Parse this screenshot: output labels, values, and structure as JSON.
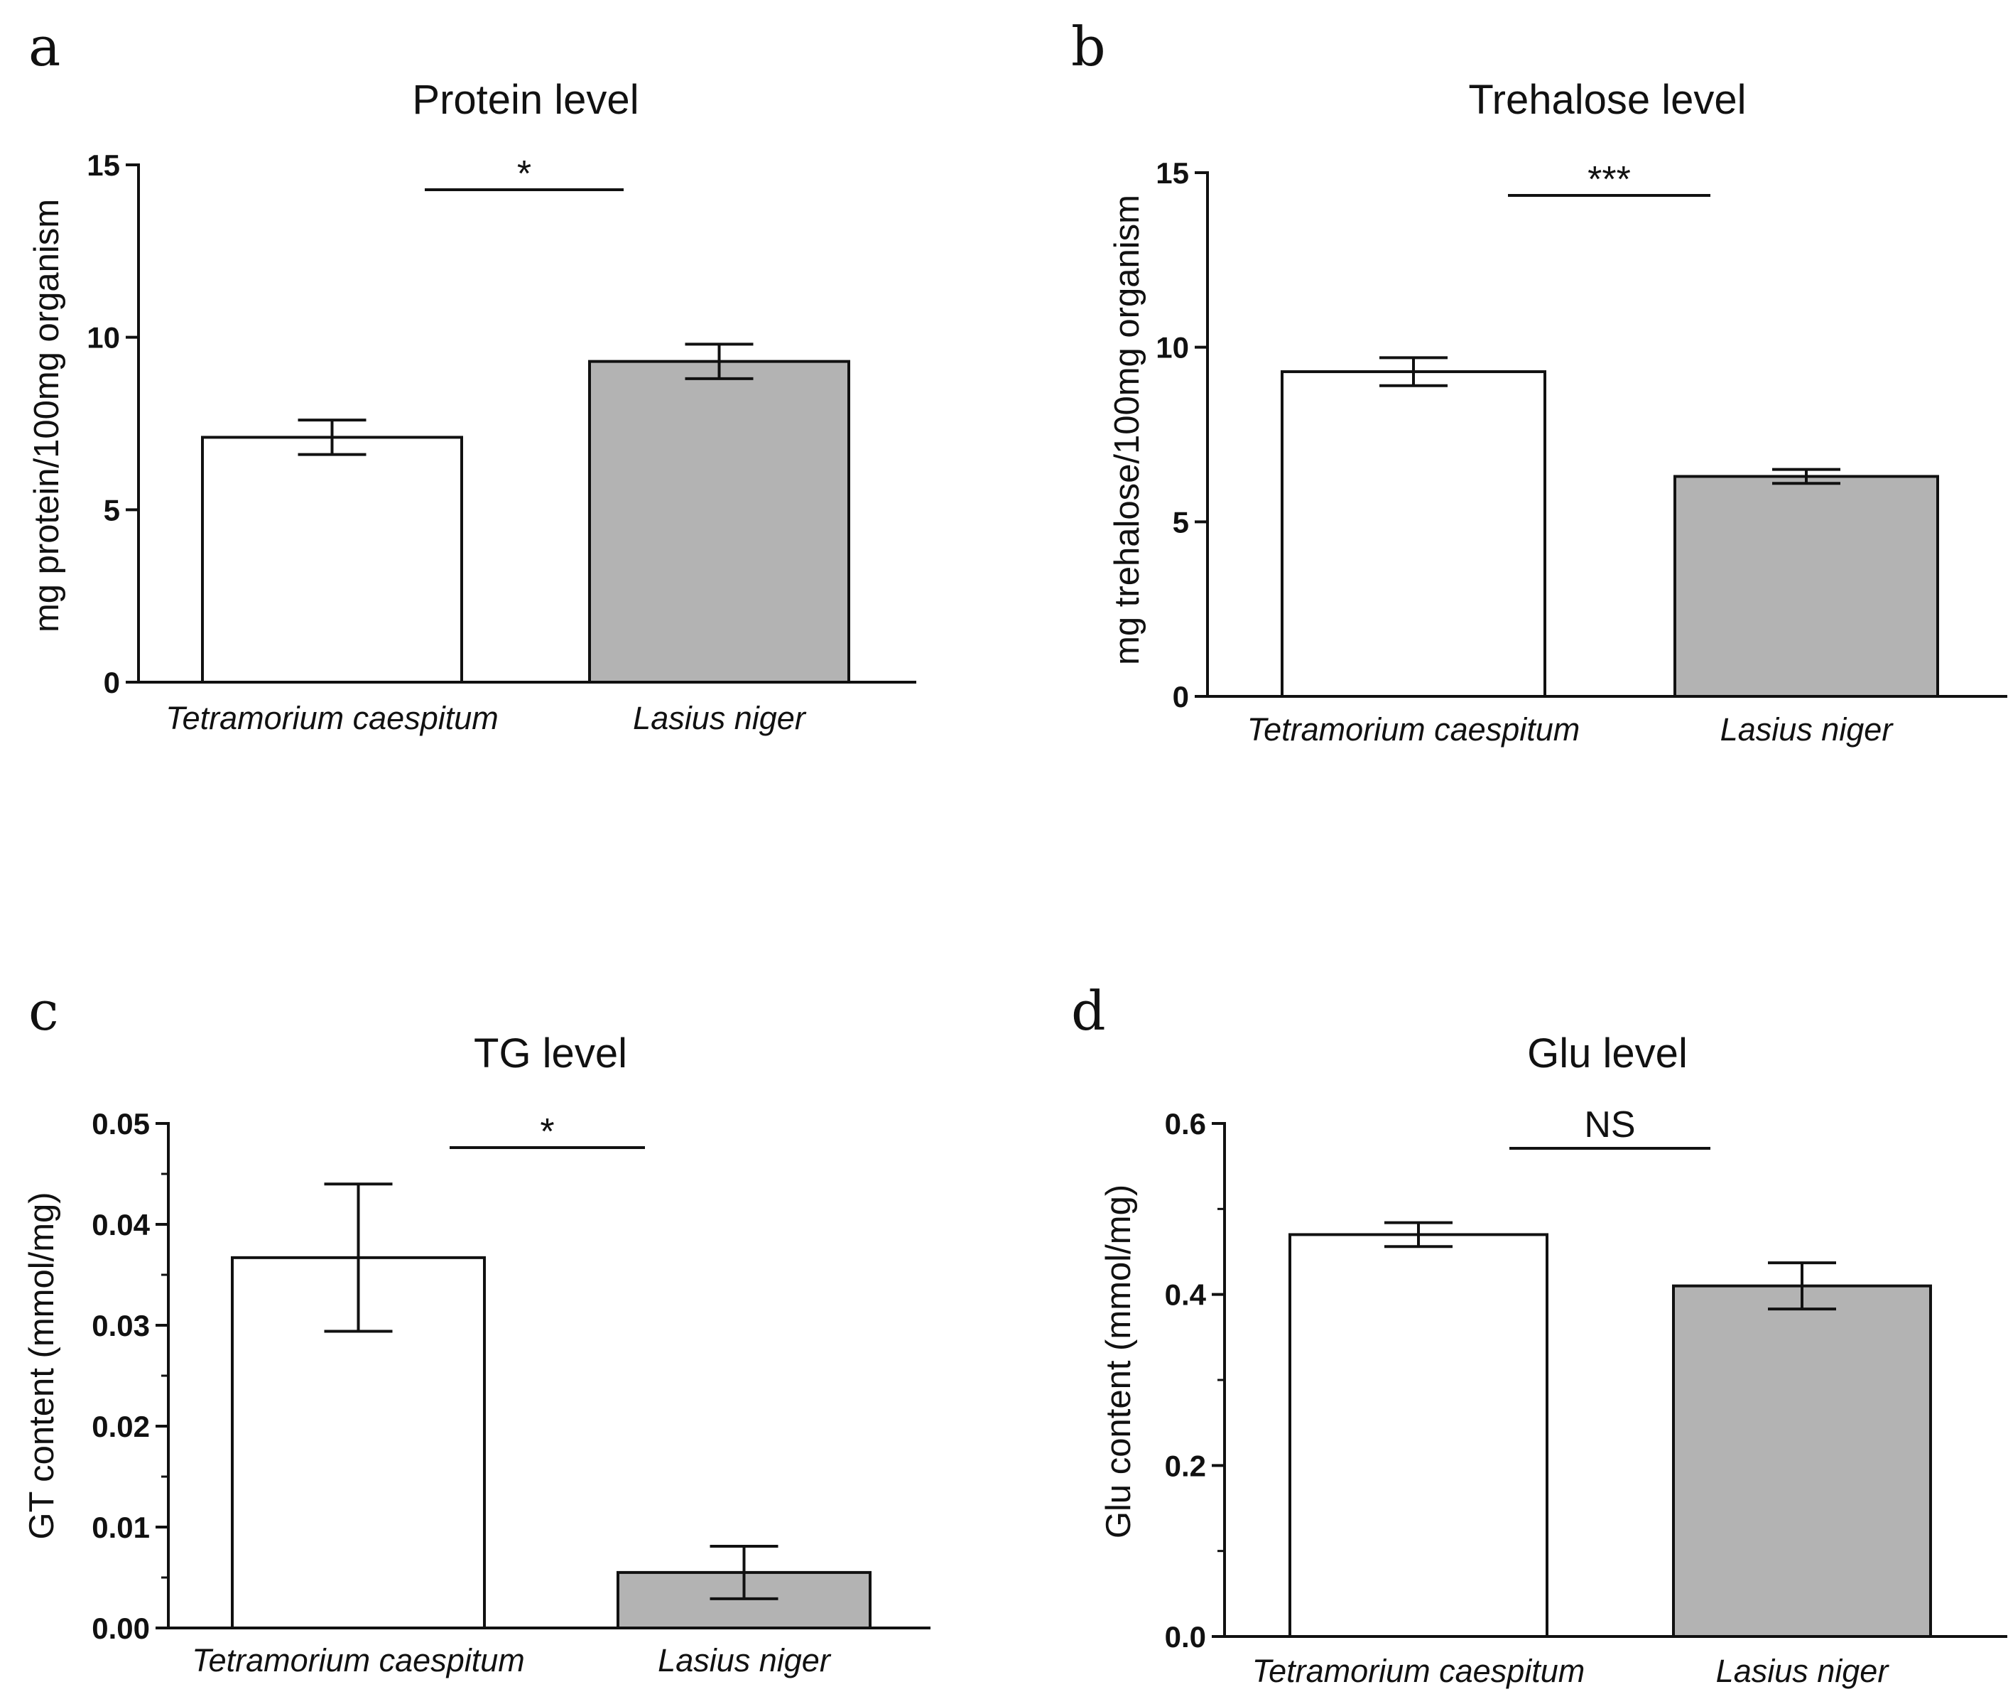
{
  "colors": {
    "bar_fill": [
      "#ffffff",
      "#b3b3b3"
    ],
    "stroke": "#111111"
  },
  "chart_data": [
    {
      "panel_label": "a",
      "type": "bar",
      "title": "Protein level",
      "ylabel": "mg protein/100mg organism",
      "xlabel": "",
      "categories": [
        "Tetramorium caespitum",
        "Lasius niger"
      ],
      "values": [
        7.1,
        9.3
      ],
      "errors": [
        0.5,
        0.5
      ],
      "ylim": [
        0,
        15
      ],
      "yticks": [
        "0",
        "5",
        "10",
        "15"
      ],
      "yticks_values": [
        0,
        5,
        10,
        15
      ],
      "minor_per_major": 0,
      "significance": "*"
    },
    {
      "panel_label": "b",
      "type": "bar",
      "title": "Trehalose level",
      "ylabel": "mg trehalose/100mg organism",
      "xlabel": "",
      "categories": [
        "Tetramorium caespitum",
        "Lasius niger"
      ],
      "values": [
        9.3,
        6.3
      ],
      "errors": [
        0.4,
        0.2
      ],
      "ylim": [
        0,
        15
      ],
      "yticks": [
        "0",
        "5",
        "10",
        "15"
      ],
      "yticks_values": [
        0,
        5,
        10,
        15
      ],
      "minor_per_major": 0,
      "significance": "***"
    },
    {
      "panel_label": "c",
      "type": "bar",
      "title": "TG level",
      "ylabel": "GT content (mmol/mg)",
      "xlabel": "",
      "categories": [
        "Tetramorium caespitum",
        "Lasius niger"
      ],
      "values": [
        0.0367,
        0.0055
      ],
      "errors": [
        0.0073,
        0.0026
      ],
      "ylim": [
        0,
        0.05
      ],
      "yticks": [
        "0.00",
        "0.01",
        "0.02",
        "0.03",
        "0.04",
        "0.05"
      ],
      "yticks_values": [
        0,
        0.01,
        0.02,
        0.03,
        0.04,
        0.05
      ],
      "minor_per_major": 1,
      "significance": "*"
    },
    {
      "panel_label": "d",
      "type": "bar",
      "title": "Glu level",
      "ylabel": "Glu content (mmol/mg)",
      "xlabel": "",
      "categories": [
        "Tetramorium caespitum",
        "Lasius niger"
      ],
      "values": [
        0.47,
        0.41
      ],
      "errors": [
        0.014,
        0.027
      ],
      "ylim": [
        0,
        0.6
      ],
      "yticks": [
        "0.0",
        "0.2",
        "0.4",
        "0.6"
      ],
      "yticks_values": [
        0,
        0.2,
        0.4,
        0.6
      ],
      "minor_per_major": 1,
      "significance": "NS"
    }
  ]
}
